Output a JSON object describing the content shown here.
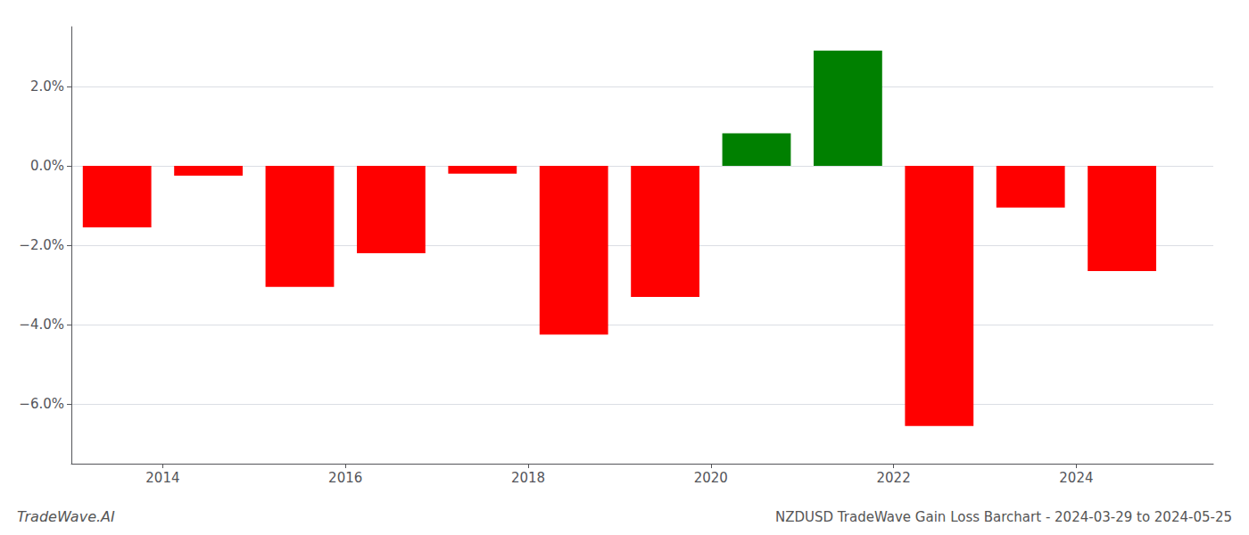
{
  "chart_data": {
    "type": "bar",
    "title": "NZDUSD TradeWave Gain Loss Barchart - 2024-03-29 to 2024-05-25",
    "annotations": [
      "TradeWave.AI"
    ],
    "x": [
      2013.5,
      2014.5,
      2015.5,
      2016.5,
      2017.5,
      2018.5,
      2019.5,
      2020.5,
      2021.5,
      2022.5,
      2023.5,
      2024.5
    ],
    "values": [
      -1.55,
      -0.25,
      -3.05,
      -2.2,
      -0.2,
      -4.25,
      -3.3,
      0.82,
      2.9,
      -6.55,
      -1.05,
      -2.65
    ],
    "colors": [
      "#ff0000",
      "#ff0000",
      "#ff0000",
      "#ff0000",
      "#ff0000",
      "#ff0000",
      "#ff0000",
      "#008000",
      "#008000",
      "#ff0000",
      "#ff0000",
      "#ff0000"
    ],
    "xlim": [
      2013.0,
      2025.5
    ],
    "xticks": [
      2014,
      2016,
      2018,
      2020,
      2022,
      2024
    ],
    "ylim": [
      -7.5,
      3.5
    ],
    "yticks": [
      {
        "value": -6.0,
        "label": "−6.0%"
      },
      {
        "value": -4.0,
        "label": "−4.0%"
      },
      {
        "value": -2.0,
        "label": "−2.0%"
      },
      {
        "value": 0.0,
        "label": "0.0%"
      },
      {
        "value": 2.0,
        "label": "2.0%"
      }
    ],
    "grid": true
  }
}
